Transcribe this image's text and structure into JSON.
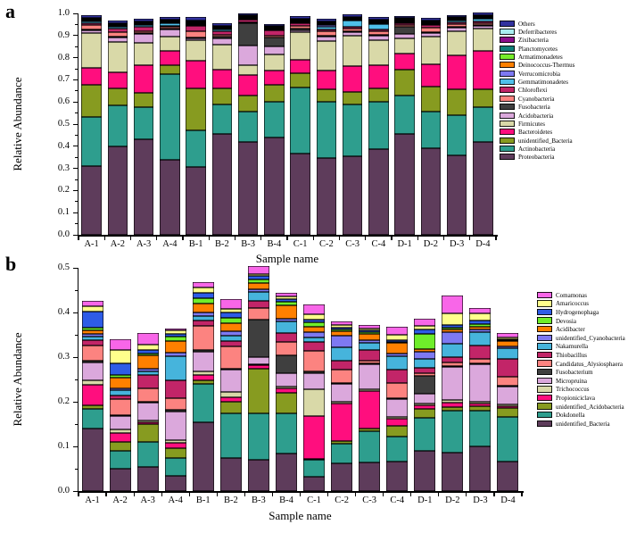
{
  "panels": {
    "a": {
      "label": "a"
    },
    "b": {
      "label": "b"
    }
  },
  "chart_data": [
    {
      "panel": "a",
      "type": "bar",
      "stacked": true,
      "xlabel": "Sample name",
      "ylabel": "Relative Abundance",
      "ylim": [
        0,
        1.0
      ],
      "ytick_step": 0.1,
      "ytick_minor_step": 0.05,
      "grid": false,
      "legend_position": "right",
      "legend_order": "reverse-of-stack (top of stack listed first)",
      "categories": [
        "A-1",
        "A-2",
        "A-3",
        "A-4",
        "B-1",
        "B-2",
        "B-3",
        "B-4",
        "C-1",
        "C-2",
        "C-3",
        "C-4",
        "D-1",
        "D-2",
        "D-3",
        "D-4"
      ],
      "series": [
        {
          "name": "Proteobacteria",
          "color": "#5E3C5B",
          "values": [
            0.31,
            0.4,
            0.43,
            0.34,
            0.305,
            0.455,
            0.42,
            0.44,
            0.365,
            0.345,
            0.355,
            0.385,
            0.455,
            0.39,
            0.36,
            0.42
          ]
        },
        {
          "name": "Actinobacteria",
          "color": "#2E9E8E",
          "values": [
            0.22,
            0.185,
            0.145,
            0.385,
            0.165,
            0.135,
            0.135,
            0.16,
            0.3,
            0.255,
            0.235,
            0.215,
            0.175,
            0.165,
            0.18,
            0.155
          ]
        },
        {
          "name": "unidentified_Bacteria",
          "color": "#879B20",
          "values": [
            0.145,
            0.075,
            0.065,
            0.04,
            0.19,
            0.07,
            0.075,
            0.075,
            0.065,
            0.055,
            0.055,
            0.06,
            0.115,
            0.115,
            0.115,
            0.08
          ]
        },
        {
          "name": "Bacteroidetes",
          "color": "#FF0E7E",
          "values": [
            0.08,
            0.075,
            0.125,
            0.065,
            0.125,
            0.085,
            0.09,
            0.065,
            0.06,
            0.085,
            0.115,
            0.105,
            0.075,
            0.1,
            0.155,
            0.175
          ]
        },
        {
          "name": "Firmicutes",
          "color": "#D9D9A8",
          "values": [
            0.155,
            0.135,
            0.1,
            0.065,
            0.095,
            0.115,
            0.045,
            0.075,
            0.125,
            0.135,
            0.14,
            0.115,
            0.065,
            0.125,
            0.11,
            0.1
          ]
        },
        {
          "name": "Acidobacteria",
          "color": "#DBA8DC",
          "values": [
            0.012,
            0.02,
            0.04,
            0.03,
            0.005,
            0.025,
            0.09,
            0.035,
            0.008,
            0.02,
            0.015,
            0.02,
            0.02,
            0.015,
            0.015,
            0.015
          ]
        },
        {
          "name": "Fusobacteria",
          "color": "#3F3F3F",
          "values": [
            0.004,
            0.005,
            0.005,
            0.008,
            0.004,
            0.01,
            0.1,
            0.04,
            0.008,
            0.003,
            0.003,
            0.003,
            0.035,
            0.005,
            0.003,
            0.003
          ]
        },
        {
          "name": "Cyanobacteria",
          "color": "#FC8380",
          "values": [
            0.022,
            0.02,
            0.01,
            0.005,
            0.03,
            0.008,
            0.004,
            0.008,
            0.012,
            0.02,
            0.015,
            0.015,
            0.008,
            0.02,
            0.012,
            0.008
          ]
        },
        {
          "name": "Chloroflexi",
          "color": "#C22568",
          "values": [
            0.006,
            0.015,
            0.02,
            0.005,
            0.025,
            0.015,
            0.012,
            0.025,
            0.012,
            0.008,
            0.008,
            0.01,
            0.008,
            0.012,
            0.01,
            0.006
          ]
        },
        {
          "name": "Gemmatimonadetes",
          "color": "#4FC0EA",
          "values": [
            0.01,
            0.008,
            0.008,
            0.012,
            0.005,
            0.008,
            0.003,
            0.005,
            0.004,
            0.012,
            0.025,
            0.025,
            0.005,
            0.005,
            0.006,
            0.012
          ]
        },
        {
          "name": "Verrucomicrobia",
          "color": "#7E79F2",
          "values": [
            0.003,
            0.003,
            0.003,
            0.003,
            0.003,
            0.003,
            0.002,
            0.002,
            0.003,
            0.01,
            0.003,
            0.003,
            0.003,
            0.003,
            0.003,
            0.003
          ]
        },
        {
          "name": "Deinococcus-Thermus",
          "color": "#FF8000",
          "values": [
            0.003,
            0.003,
            0.003,
            0.003,
            0.003,
            0.003,
            0.002,
            0.002,
            0.003,
            0.005,
            0.003,
            0.003,
            0.002,
            0.003,
            0.003,
            0.003
          ]
        },
        {
          "name": "Armatimonadetes",
          "color": "#76EE2A",
          "values": [
            0.002,
            0.002,
            0.002,
            0.002,
            0.002,
            0.002,
            0.002,
            0.002,
            0.002,
            0.003,
            0.002,
            0.002,
            0.004,
            0.002,
            0.002,
            0.002
          ]
        },
        {
          "name": "Planctomycetes",
          "color": "#0E7F78",
          "values": [
            0.004,
            0.004,
            0.004,
            0.004,
            0.004,
            0.004,
            0.005,
            0.004,
            0.004,
            0.004,
            0.004,
            0.004,
            0.004,
            0.004,
            0.004,
            0.004
          ]
        },
        {
          "name": "Zixibacteria",
          "color": "#8B0E8B",
          "values": [
            0.002,
            0.002,
            0.002,
            0.002,
            0.002,
            0.002,
            0.002,
            0.002,
            0.002,
            0.002,
            0.002,
            0.002,
            0.002,
            0.002,
            0.002,
            0.002
          ]
        },
        {
          "name": "Deferribacteres",
          "color": "#A8EFF0",
          "values": [
            0.003,
            0.003,
            0.003,
            0.003,
            0.004,
            0.003,
            0.003,
            0.003,
            0.003,
            0.003,
            0.003,
            0.003,
            0.003,
            0.003,
            0.003,
            0.003
          ]
        },
        {
          "name": "Others",
          "color": "#32329E",
          "values": [
            0.012,
            0.012,
            0.01,
            0.01,
            0.015,
            0.012,
            0.008,
            0.01,
            0.01,
            0.012,
            0.012,
            0.012,
            0.008,
            0.01,
            0.01,
            0.012
          ]
        }
      ]
    },
    {
      "panel": "b",
      "type": "bar",
      "stacked": true,
      "xlabel": "Sample name",
      "ylabel": "Relative Abundance",
      "ylim": [
        0,
        0.5
      ],
      "ytick_step": 0.1,
      "ytick_minor_step": 0.05,
      "grid": false,
      "legend_position": "right",
      "legend_order": "reverse-of-stack (top of stack listed first)",
      "categories": [
        "A-1",
        "A-2",
        "A-3",
        "A-4",
        "B-1",
        "B-2",
        "B-3",
        "B-4",
        "C-1",
        "C-2",
        "C-3",
        "C-4",
        "D-1",
        "D-2",
        "D-3",
        "D-4"
      ],
      "series": [
        {
          "name": "unidentified_Bacteria",
          "color": "#5E3C5B",
          "values": [
            0.14,
            0.05,
            0.055,
            0.035,
            0.155,
            0.075,
            0.07,
            0.085,
            0.033,
            0.063,
            0.065,
            0.067,
            0.09,
            0.087,
            0.1,
            0.067
          ]
        },
        {
          "name": "Dokdonella",
          "color": "#2E9E8E",
          "values": [
            0.045,
            0.04,
            0.055,
            0.04,
            0.085,
            0.1,
            0.105,
            0.09,
            0.037,
            0.044,
            0.07,
            0.056,
            0.075,
            0.093,
            0.08,
            0.1
          ]
        },
        {
          "name": "unidentified_Acidobacteria",
          "color": "#879B20",
          "values": [
            0.008,
            0.02,
            0.04,
            0.022,
            0.008,
            0.025,
            0.1,
            0.045,
            0.003,
            0.005,
            0.005,
            0.024,
            0.02,
            0.008,
            0.01,
            0.02
          ]
        },
        {
          "name": "Propioniciclava",
          "color": "#FF0E7E",
          "values": [
            0.045,
            0.02,
            0.005,
            0.012,
            0.012,
            0.01,
            0.007,
            0.01,
            0.095,
            0.085,
            0.085,
            0.016,
            0.008,
            0.01,
            0.006,
            0.004
          ]
        },
        {
          "name": "Trichococcus",
          "color": "#D9D9A8",
          "values": [
            0.01,
            0.008,
            0.003,
            0.005,
            0.008,
            0.012,
            0.003,
            0.004,
            0.06,
            0.004,
            0.004,
            0.004,
            0.004,
            0.006,
            0.004,
            0.003
          ]
        },
        {
          "name": "Micropruina",
          "color": "#DBA8DC",
          "values": [
            0.04,
            0.03,
            0.04,
            0.065,
            0.045,
            0.05,
            0.015,
            0.03,
            0.037,
            0.04,
            0.055,
            0.04,
            0.022,
            0.075,
            0.085,
            0.04
          ]
        },
        {
          "name": "Fusobacterium",
          "color": "#3F3F3F",
          "values": [
            0.004,
            0.003,
            0.003,
            0.004,
            0.003,
            0.002,
            0.085,
            0.04,
            0.004,
            0.002,
            0.002,
            0.002,
            0.04,
            0.002,
            0.002,
            0.002
          ]
        },
        {
          "name": "Candidatus_Alysiosphaera",
          "color": "#FC8380",
          "values": [
            0.035,
            0.035,
            0.03,
            0.025,
            0.055,
            0.05,
            0.025,
            0.03,
            0.045,
            0.03,
            0.006,
            0.033,
            0.006,
            0.008,
            0.01,
            0.02
          ]
        },
        {
          "name": "Thiobacillus",
          "color": "#C22568",
          "values": [
            0.012,
            0.008,
            0.03,
            0.04,
            0.012,
            0.012,
            0.017,
            0.02,
            0.02,
            0.02,
            0.025,
            0.03,
            0.012,
            0.012,
            0.03,
            0.04
          ]
        },
        {
          "name": "Nakamurella",
          "color": "#46B4DC",
          "values": [
            0.008,
            0.012,
            0.008,
            0.055,
            0.01,
            0.012,
            0.02,
            0.027,
            0.01,
            0.03,
            0.015,
            0.03,
            0.02,
            0.03,
            0.03,
            0.025
          ]
        },
        {
          "name": "unidentified_Cyanobacteria",
          "color": "#7E79F2",
          "values": [
            0.006,
            0.004,
            0.006,
            0.008,
            0.008,
            0.01,
            0.006,
            0.006,
            0.012,
            0.025,
            0.006,
            0.006,
            0.015,
            0.025,
            0.006,
            0.004
          ]
        },
        {
          "name": "Acidibacter",
          "color": "#FF8000",
          "values": [
            0.008,
            0.025,
            0.03,
            0.025,
            0.02,
            0.018,
            0.014,
            0.03,
            0.012,
            0.01,
            0.015,
            0.025,
            0.006,
            0.007,
            0.006,
            0.012
          ]
        },
        {
          "name": "Devosia",
          "color": "#6FEE2A",
          "values": [
            0.006,
            0.006,
            0.004,
            0.01,
            0.012,
            0.012,
            0.007,
            0.008,
            0.01,
            0.004,
            0.004,
            0.002,
            0.035,
            0.004,
            0.006,
            0.002
          ]
        },
        {
          "name": "Hydrogenophaga",
          "color": "#2E5CE6",
          "values": [
            0.035,
            0.025,
            0.008,
            0.006,
            0.012,
            0.012,
            0.008,
            0.006,
            0.006,
            0.004,
            0.004,
            0.004,
            0.01,
            0.006,
            0.008,
            0.002
          ]
        },
        {
          "name": "Amaricoccus",
          "color": "#FFFF8C",
          "values": [
            0.012,
            0.03,
            0.012,
            0.008,
            0.012,
            0.008,
            0.004,
            0.005,
            0.012,
            0.006,
            0.004,
            0.012,
            0.008,
            0.025,
            0.015,
            0.004
          ]
        },
        {
          "name": "Comamonas",
          "color": "#F866E8",
          "values": [
            0.012,
            0.025,
            0.025,
            0.004,
            0.012,
            0.022,
            0.018,
            0.008,
            0.022,
            0.008,
            0.008,
            0.018,
            0.015,
            0.04,
            0.012,
            0.01
          ]
        }
      ]
    }
  ]
}
